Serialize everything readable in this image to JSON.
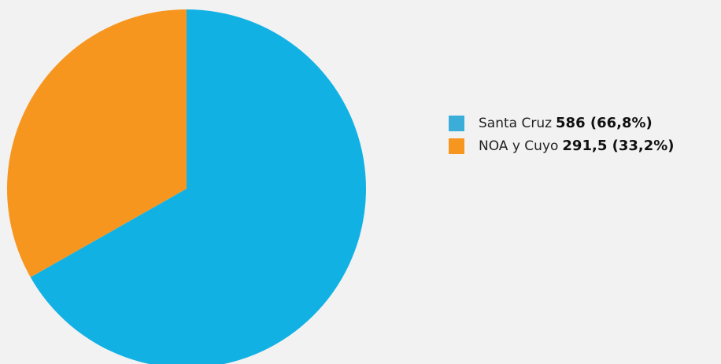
{
  "chart_data": {
    "type": "pie",
    "categories": [
      "Santa Cruz",
      "NOA y Cuyo"
    ],
    "values": [
      586,
      291.5
    ],
    "value_labels": [
      "586 (66,8%)",
      "291,5 (33,2%)"
    ],
    "colors": [
      "#12b1e4",
      "#f7961f"
    ],
    "legend_swatch_colors": [
      "#3aaed8",
      "#f7961f"
    ],
    "title": "",
    "legend_position": "right"
  }
}
